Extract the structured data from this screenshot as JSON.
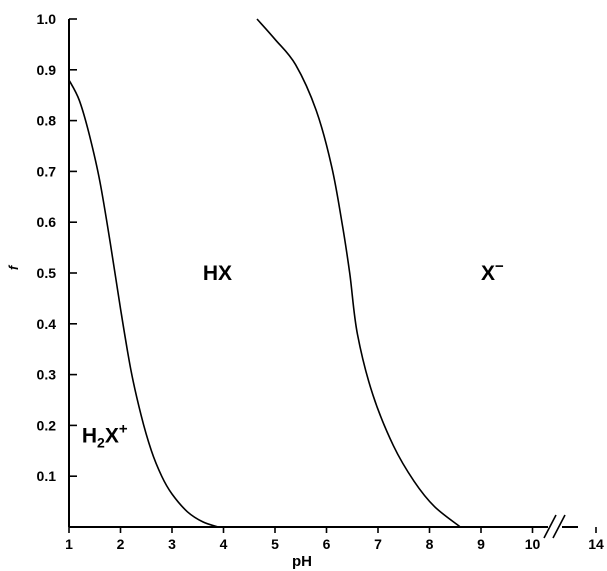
{
  "chart_data": {
    "type": "line",
    "xlabel": "pH",
    "ylabel": "f",
    "xlim": [
      1,
      14
    ],
    "ylim": [
      0,
      1.0
    ],
    "x_break": {
      "from": 10.5,
      "to": 14
    },
    "x_ticks": [
      {
        "value": 1,
        "label": "1"
      },
      {
        "value": 2,
        "label": "2"
      },
      {
        "value": 3,
        "label": "3"
      },
      {
        "value": 4,
        "label": "4"
      },
      {
        "value": 5,
        "label": "5"
      },
      {
        "value": 6,
        "label": "6"
      },
      {
        "value": 7,
        "label": "7"
      },
      {
        "value": 8,
        "label": "8"
      },
      {
        "value": 9,
        "label": "9"
      },
      {
        "value": 10,
        "label": "10"
      },
      {
        "value": 14,
        "label": "14"
      }
    ],
    "y_ticks": [
      {
        "value": 0.1,
        "label": "0.1"
      },
      {
        "value": 0.2,
        "label": "0.2"
      },
      {
        "value": 0.3,
        "label": "0.3"
      },
      {
        "value": 0.4,
        "label": "0.4"
      },
      {
        "value": 0.5,
        "label": "0.5"
      },
      {
        "value": 0.6,
        "label": "0.6"
      },
      {
        "value": 0.7,
        "label": "0.7"
      },
      {
        "value": 0.8,
        "label": "0.8"
      },
      {
        "value": 0.9,
        "label": "0.9"
      },
      {
        "value": 1.0,
        "label": "1.0"
      }
    ],
    "series": [
      {
        "x": [
          1.0,
          1.2,
          1.4,
          1.6,
          1.8,
          2.0,
          2.2,
          2.4,
          2.6,
          2.8,
          3.0,
          3.3,
          3.6,
          3.9
        ],
        "values": [
          0.88,
          0.84,
          0.77,
          0.68,
          0.56,
          0.43,
          0.31,
          0.22,
          0.15,
          0.1,
          0.065,
          0.03,
          0.01,
          0.0
        ]
      },
      {
        "x": [
          4.65,
          5.0,
          5.4,
          5.8,
          6.1,
          6.3,
          6.45,
          6.6,
          6.9,
          7.3,
          7.7,
          8.1,
          8.6
        ],
        "values": [
          1.0,
          0.96,
          0.91,
          0.82,
          0.71,
          0.6,
          0.5,
          0.38,
          0.26,
          0.16,
          0.09,
          0.04,
          0.0
        ]
      }
    ],
    "regions": [
      {
        "main": "H",
        "sub": "2",
        "rest": "X",
        "sup": "+",
        "x": 1.25,
        "y": 0.18
      },
      {
        "main": "HX",
        "sub": "",
        "rest": "",
        "sup": "",
        "x": 3.6,
        "y": 0.5
      },
      {
        "main": "X",
        "sub": "",
        "rest": "",
        "sup": "−",
        "x": 9.0,
        "y": 0.5
      }
    ]
  }
}
